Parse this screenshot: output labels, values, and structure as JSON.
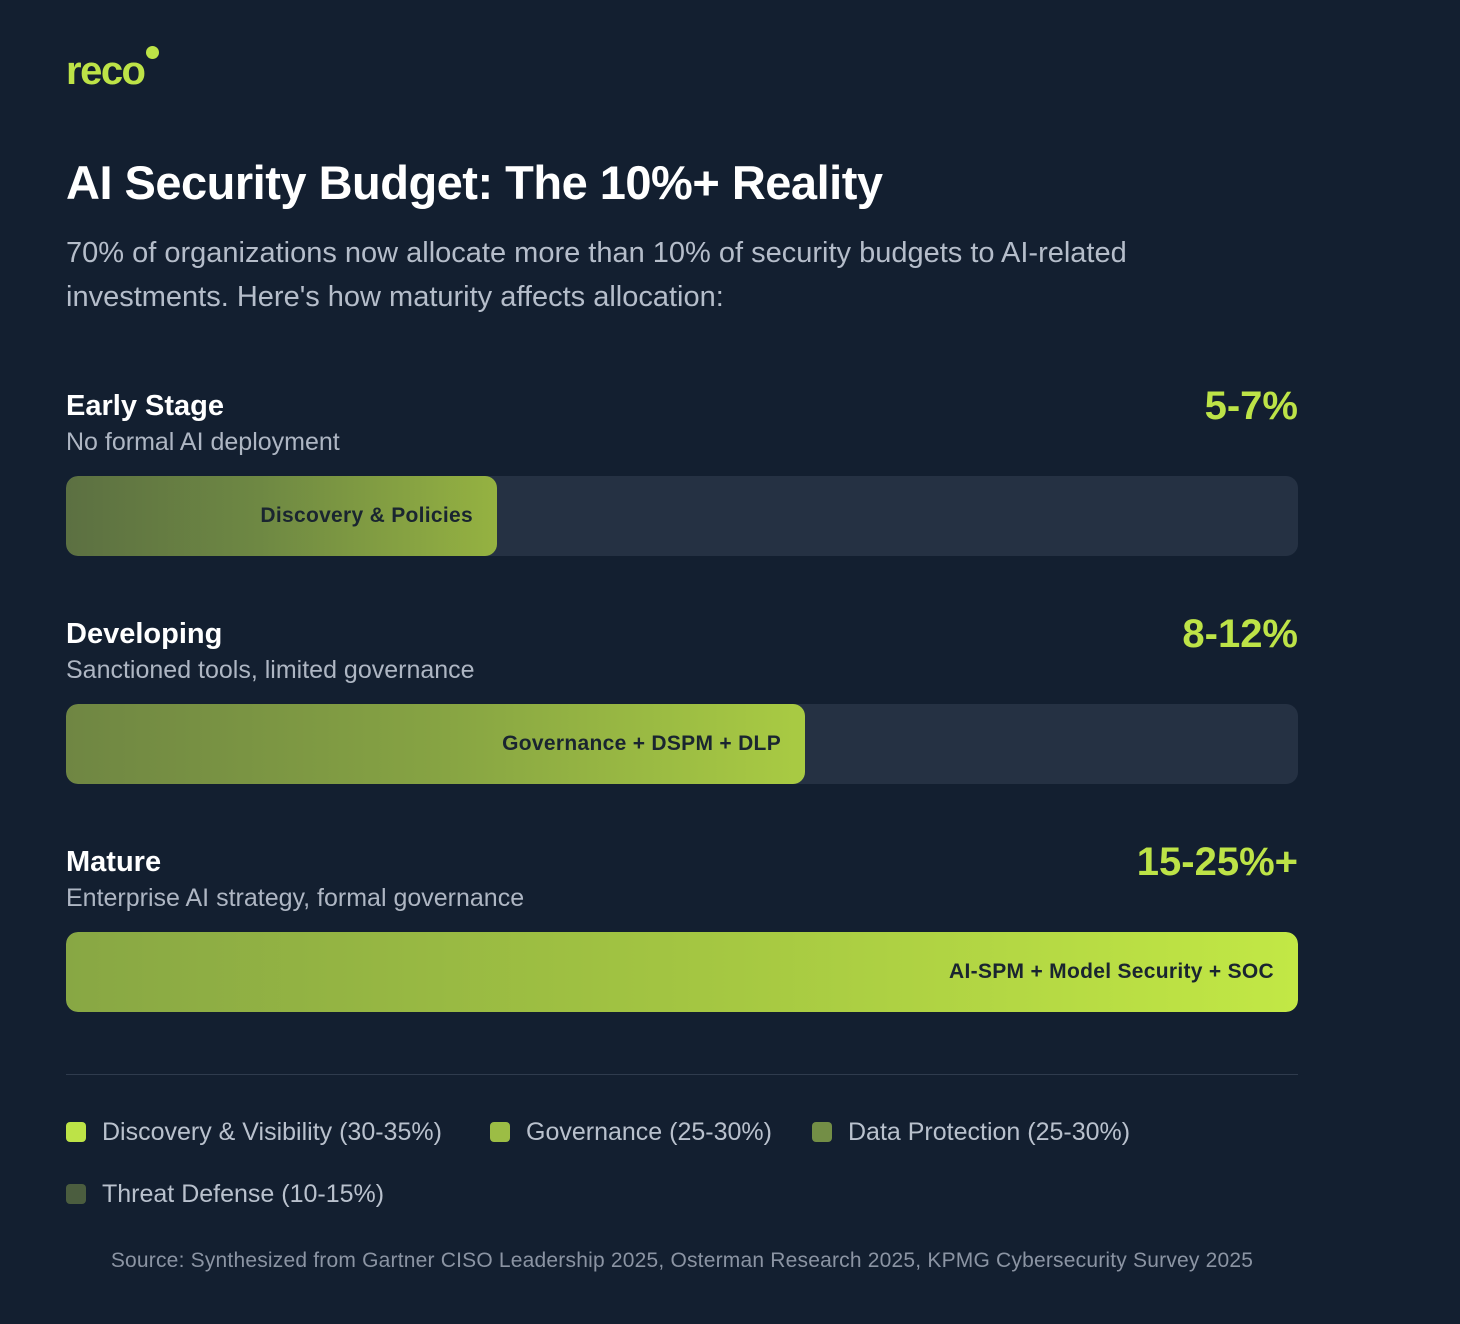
{
  "brand": {
    "logo_text": "reco",
    "accent_color": "#bde347"
  },
  "title": "AI Security Budget: The 10%+ Reality",
  "subtitle": "70% of organizations now allocate more than 10% of security budgets to AI-related investments. Here's how maturity affects allocation:",
  "chart_data": {
    "type": "bar",
    "orientation": "horizontal",
    "title": "AI Security Budget: The 10%+ Reality",
    "categories": [
      "Early Stage",
      "Developing",
      "Mature"
    ],
    "descriptions": [
      "No formal AI deployment",
      "Sanctioned tools, limited governance",
      "Enterprise AI strategy, formal governance"
    ],
    "value_labels": [
      "5-7%",
      "8-12%",
      "15-25%+"
    ],
    "bar_labels": [
      "Discovery & Policies",
      "Governance + DSPM + DLP",
      "AI-SPM + Model Security + SOC"
    ],
    "relative_fill": [
      0.35,
      0.6,
      1.0
    ],
    "xlim": [
      0,
      1
    ],
    "legend": [
      {
        "label": "Discovery & Visibility (30-35%)",
        "color": "#bde347"
      },
      {
        "label": "Governance (25-30%)",
        "color": "#9cbd45"
      },
      {
        "label": "Data Protection (25-30%)",
        "color": "#738e46"
      },
      {
        "label": "Threat Defense (10-15%)",
        "color": "#4b5d3f"
      }
    ]
  },
  "source": "Source: Synthesized from Gartner CISO Leadership 2025, Osterman Research 2025, KPMG Cybersecurity Survey 2025"
}
